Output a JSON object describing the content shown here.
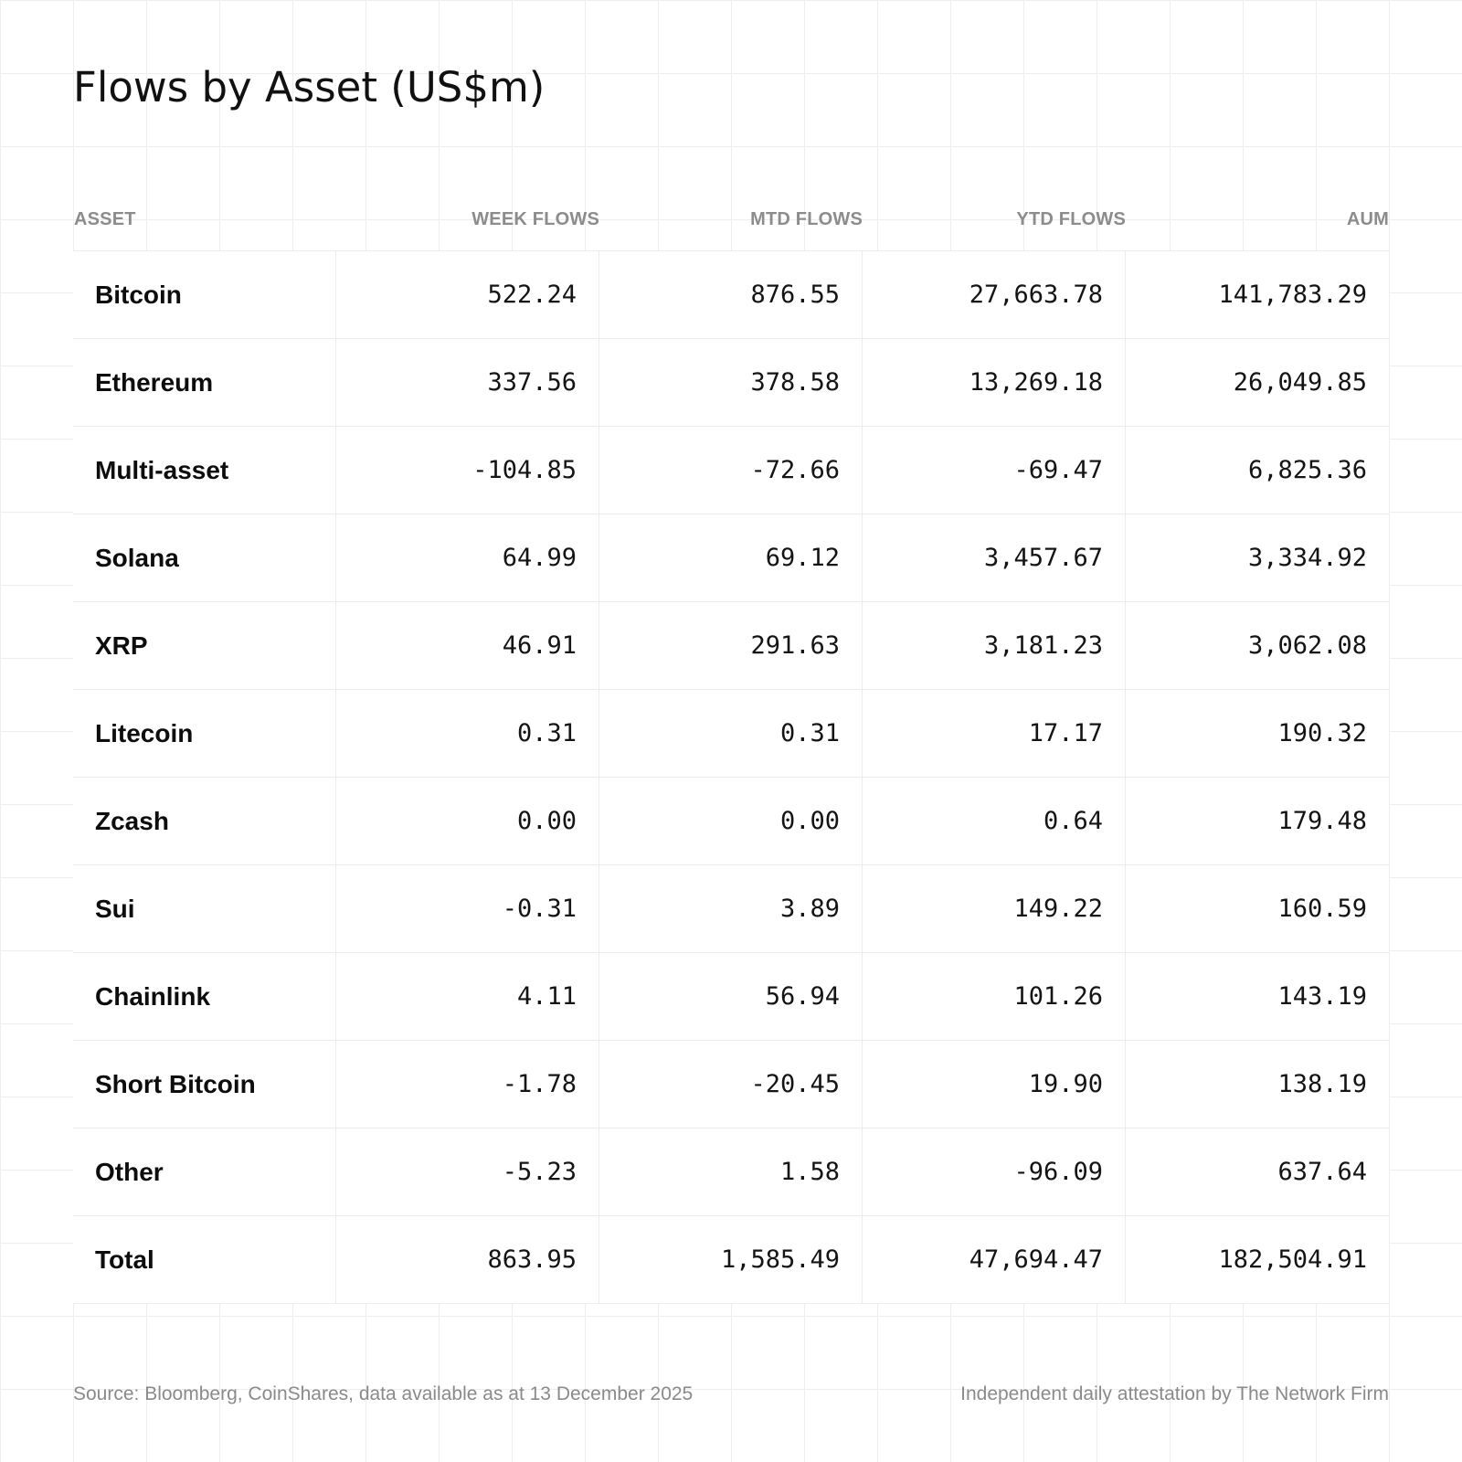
{
  "title": "Flows by Asset (US$m)",
  "chart_data": {
    "type": "table",
    "title": "Flows by Asset (US$m)",
    "columns": [
      "ASSET",
      "WEEK FLOWS",
      "MTD FLOWS",
      "YTD FLOWS",
      "AUM"
    ],
    "rows": [
      [
        "Bitcoin",
        "522.24",
        "876.55",
        "27,663.78",
        "141,783.29"
      ],
      [
        "Ethereum",
        "337.56",
        "378.58",
        "13,269.18",
        "26,049.85"
      ],
      [
        "Multi-asset",
        "-104.85",
        "-72.66",
        "-69.47",
        "6,825.36"
      ],
      [
        "Solana",
        "64.99",
        "69.12",
        "3,457.67",
        "3,334.92"
      ],
      [
        "XRP",
        "46.91",
        "291.63",
        "3,181.23",
        "3,062.08"
      ],
      [
        "Litecoin",
        "0.31",
        "0.31",
        "17.17",
        "190.32"
      ],
      [
        "Zcash",
        "0.00",
        "0.00",
        "0.64",
        "179.48"
      ],
      [
        "Sui",
        "-0.31",
        "3.89",
        "149.22",
        "160.59"
      ],
      [
        "Chainlink",
        "4.11",
        "56.94",
        "101.26",
        "143.19"
      ],
      [
        "Short Bitcoin",
        "-1.78",
        "-20.45",
        "19.90",
        "138.19"
      ],
      [
        "Other",
        "-5.23",
        "1.58",
        "-96.09",
        "637.64"
      ],
      [
        "Total",
        "863.95",
        "1,585.49",
        "47,694.47",
        "182,504.91"
      ]
    ]
  },
  "footer": {
    "source": "Source: Bloomberg, CoinShares, data available as at 13 December 2025",
    "attestation": "Independent daily attestation by The Network Firm"
  },
  "colors": {
    "background": "#ffffff",
    "grid": "#eeeeee",
    "header_text": "#8c8c8c",
    "body_text": "#111111",
    "footer_text": "#8a8a8a"
  }
}
